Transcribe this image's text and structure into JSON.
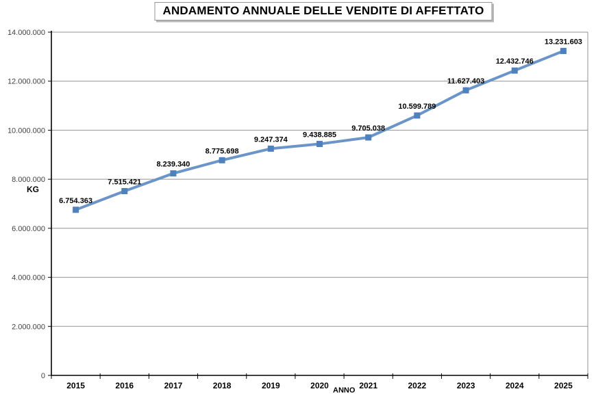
{
  "chart_data": {
    "type": "line",
    "title": "ANDAMENTO ANNUALE DELLE VENDITE DI AFFETTATO",
    "xlabel": "ANNO",
    "ylabel": "KG",
    "categories": [
      "2015",
      "2016",
      "2017",
      "2018",
      "2019",
      "2020",
      "2021",
      "2022",
      "2023",
      "2024",
      "2025"
    ],
    "values": [
      6754363,
      7515421,
      8239340,
      8775698,
      9247374,
      9438885,
      9705038,
      10599789,
      11627403,
      12432746,
      13231603
    ],
    "value_labels": [
      "6.754.363",
      "7.515.421",
      "8.239.340",
      "8.775.698",
      "9.247.374",
      "9.438.885",
      "9.705.038",
      "10.599.789",
      "11.627.403",
      "12.432.746",
      "13.231.603"
    ],
    "ylim": [
      0,
      14000000
    ],
    "yticks": [
      0,
      2000000,
      4000000,
      6000000,
      8000000,
      10000000,
      12000000,
      14000000
    ],
    "ytick_labels": [
      "0",
      "2.000.000",
      "4.000.000",
      "6.000.000",
      "8.000.000",
      "10.000.000",
      "12.000.000",
      "14.000.000"
    ],
    "grid": true,
    "legend": "none",
    "colors": {
      "line": "#6b95c9",
      "marker": "#4f81bd",
      "gridline": "#929292",
      "axis": "#000000"
    }
  }
}
